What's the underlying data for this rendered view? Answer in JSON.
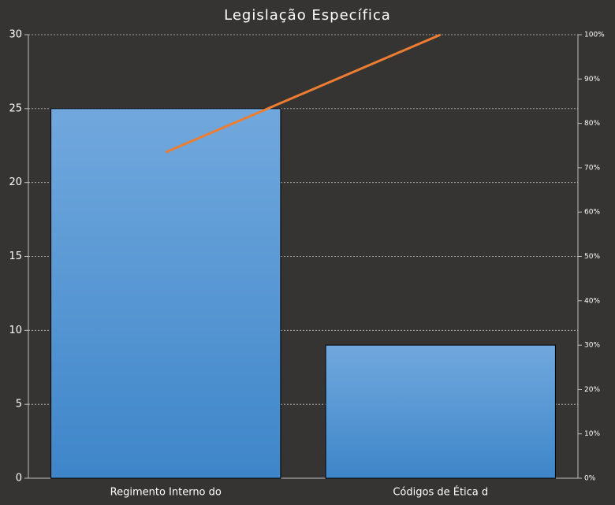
{
  "chart_data": {
    "type": "bar",
    "title": "Legislação  Específica",
    "categories": [
      "Regimento Interno  do",
      "Códigos de Ética d"
    ],
    "series": [
      {
        "type": "bar",
        "color": "#5b9bd5",
        "values": [
          25,
          9
        ]
      },
      {
        "type": "line",
        "axis": "y2",
        "color": "#ed7d31",
        "values": [
          73.5,
          100
        ]
      }
    ],
    "ylim": [
      0,
      30
    ],
    "yticks": [
      0,
      5,
      10,
      15,
      20,
      25,
      30
    ],
    "y2lim": [
      0,
      100
    ],
    "y2ticks": [
      {
        "value": 0,
        "label": "0%"
      },
      {
        "value": 10,
        "label": "10%"
      },
      {
        "value": 20,
        "label": "20%"
      },
      {
        "value": 30,
        "label": "30%"
      },
      {
        "value": 40,
        "label": "40%"
      },
      {
        "value": 50,
        "label": "50%"
      },
      {
        "value": 60,
        "label": "60%"
      },
      {
        "value": 70,
        "label": "70%"
      },
      {
        "value": 80,
        "label": "80%"
      },
      {
        "value": 90,
        "label": "90%"
      },
      {
        "value": 100,
        "label": "100%"
      }
    ],
    "grid": true
  }
}
